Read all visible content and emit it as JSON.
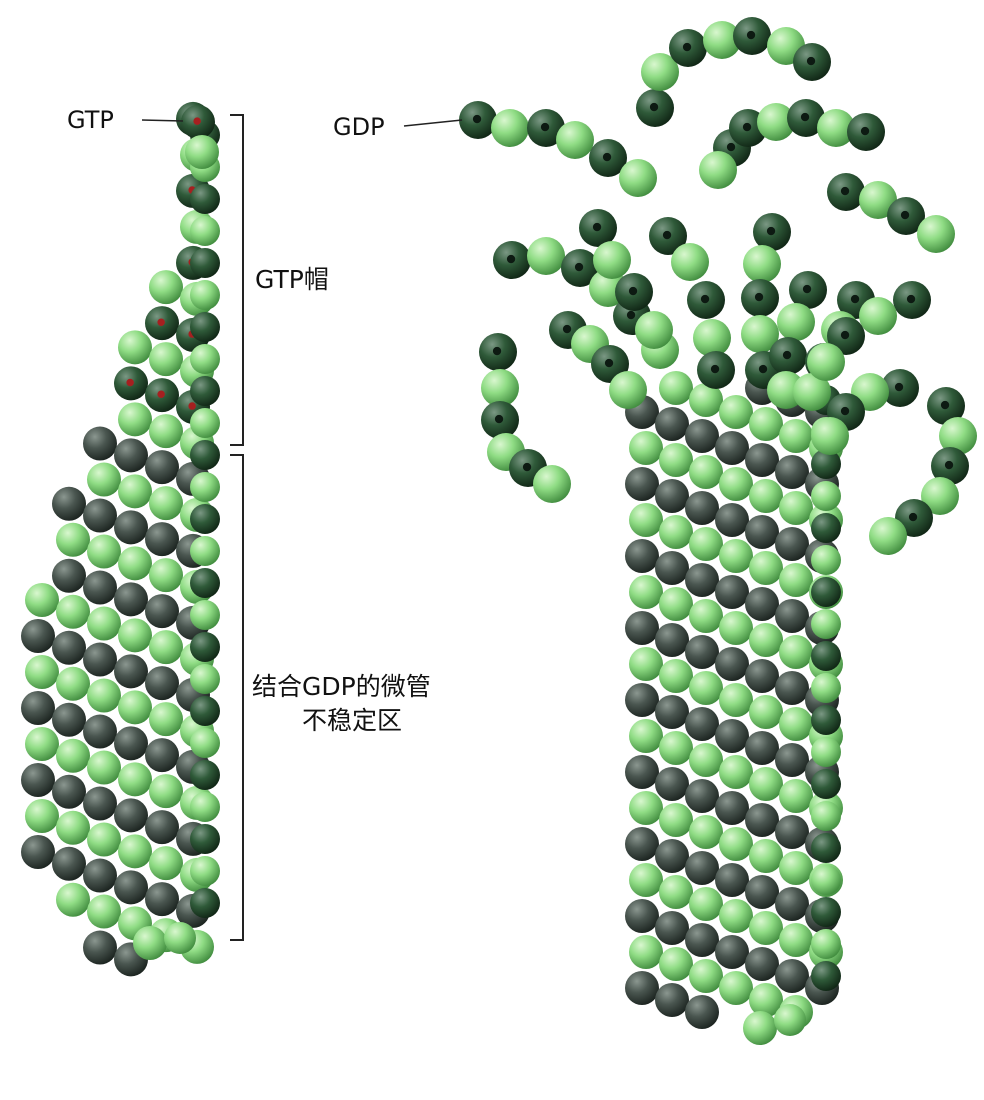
{
  "labels": {
    "gtp": "GTP",
    "gdp": "GDP",
    "gtp_cap": "GTP帽",
    "unstable_line1": "结合GDP的微管",
    "unstable_line2": "不稳定区"
  },
  "colors": {
    "light_green": "#8fdc84",
    "dark_green": "#2c5a34",
    "dark_gray": "#44504a",
    "gtp_dot": "#a62020",
    "gdp_dot": "#0d1a12",
    "bracket": "#222222"
  }
}
